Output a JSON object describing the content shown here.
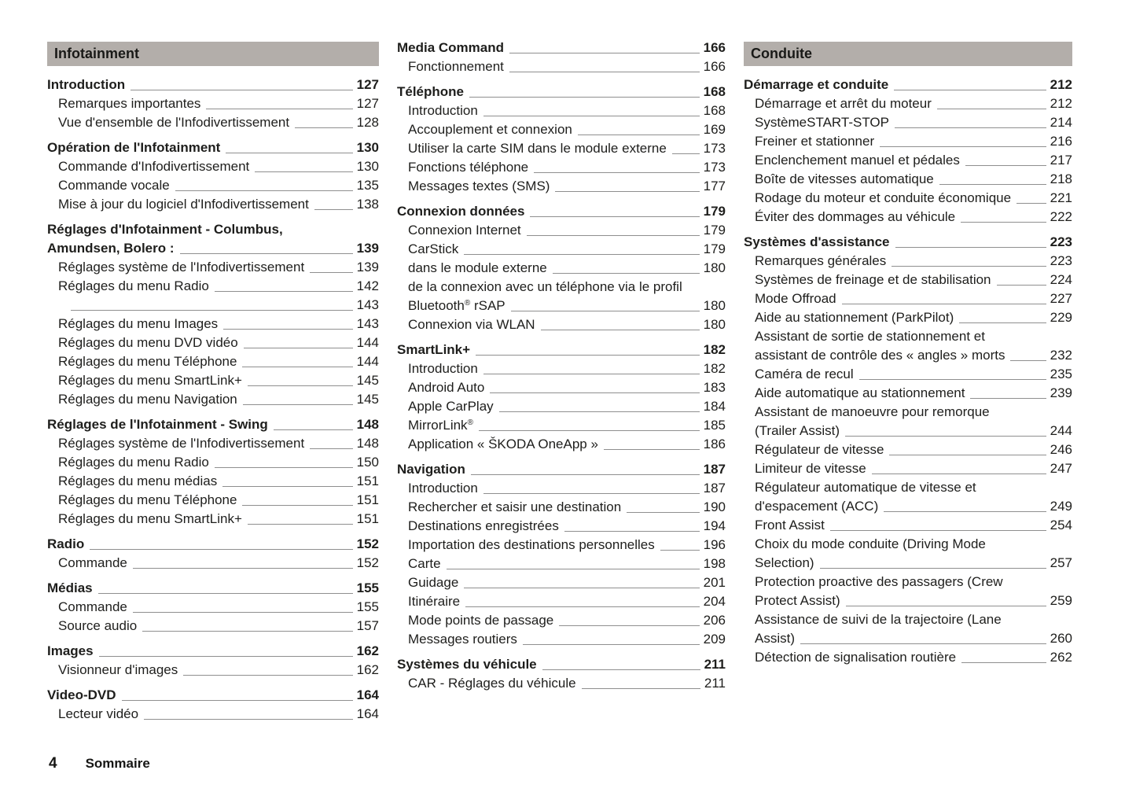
{
  "footer": {
    "page_number": "4",
    "label": "Sommaire"
  },
  "columns": [
    {
      "banner": "Infotainment",
      "sections": [
        {
          "title": "Introduction",
          "page": "127",
          "items": [
            {
              "label": "Remarques importantes",
              "page": "127"
            },
            {
              "label": "Vue d'ensemble de l'Infodivertissement",
              "page": "128"
            }
          ]
        },
        {
          "title": "Opération de l'Infotainment",
          "page": "130",
          "items": [
            {
              "label": "Commande d'Infodivertissement",
              "page": "130"
            },
            {
              "label": "Commande vocale",
              "page": "135"
            },
            {
              "label": "Mise à jour du logiciel d'Infodivertissement",
              "page": "138"
            }
          ]
        },
        {
          "title": "Réglages d'Infotainment - Columbus,\nAmundsen, Bolero :",
          "page": "139",
          "items": [
            {
              "label": "Réglages système de l'Infodivertissement",
              "page": "139"
            },
            {
              "label": "Réglages du menu Radio",
              "page": "142"
            },
            {
              "label": "",
              "page": "143"
            },
            {
              "label": "Réglages du menu Images",
              "page": "143"
            },
            {
              "label": "Réglages du menu DVD vidéo",
              "page": "144"
            },
            {
              "label": "Réglages du menu Téléphone",
              "page": "144"
            },
            {
              "label": "Réglages du menu SmartLink+",
              "page": "145"
            },
            {
              "label": "Réglages du menu Navigation",
              "page": "145"
            }
          ]
        },
        {
          "title": "Réglages de l'Infotainment - Swing",
          "page": "148",
          "items": [
            {
              "label": "Réglages système de l'Infodivertissement",
              "page": "148"
            },
            {
              "label": "Réglages du menu Radio",
              "page": "150"
            },
            {
              "label": "Réglages du menu médias",
              "page": "151"
            },
            {
              "label": "Réglages du menu Téléphone",
              "page": "151"
            },
            {
              "label": "Réglages du menu SmartLink+",
              "page": "151"
            }
          ]
        },
        {
          "title": "Radio",
          "page": "152",
          "items": [
            {
              "label": "Commande",
              "page": "152"
            }
          ]
        },
        {
          "title": "Médias",
          "page": "155",
          "items": [
            {
              "label": "Commande",
              "page": "155"
            },
            {
              "label": "Source audio",
              "page": "157"
            }
          ]
        },
        {
          "title": "Images",
          "page": "162",
          "items": [
            {
              "label": "Visionneur d'images",
              "page": "162"
            }
          ]
        },
        {
          "title": "Video-DVD",
          "page": "164",
          "items": [
            {
              "label": "Lecteur vidéo",
              "page": "164"
            }
          ]
        }
      ]
    },
    {
      "banner": null,
      "sections": [
        {
          "title": "Media Command",
          "page": "166",
          "items": [
            {
              "label": "Fonctionnement",
              "page": "166"
            }
          ]
        },
        {
          "title": "Téléphone",
          "page": "168",
          "items": [
            {
              "label": "Introduction",
              "page": "168"
            },
            {
              "label": "Accouplement et connexion",
              "page": "169"
            },
            {
              "label": "Utiliser la carte SIM dans le module externe",
              "page": "173"
            },
            {
              "label": "Fonctions téléphone",
              "page": "173"
            },
            {
              "label": "Messages textes (SMS)",
              "page": "177"
            }
          ]
        },
        {
          "title": "Connexion données",
          "page": "179",
          "items": [
            {
              "label": "Connexion Internet",
              "page": "179"
            },
            {
              "label": "CarStick",
              "page": "179"
            },
            {
              "label": "dans le module externe",
              "page": "180"
            },
            {
              "label": "de la connexion avec un téléphone via le profil\nBluetooth® rSAP",
              "page": "180"
            },
            {
              "label": "Connexion via WLAN",
              "page": "180"
            }
          ]
        },
        {
          "title": "SmartLink+",
          "page": "182",
          "items": [
            {
              "label": "Introduction",
              "page": "182"
            },
            {
              "label": "Android Auto",
              "page": "183"
            },
            {
              "label": "Apple CarPlay",
              "page": "184"
            },
            {
              "label": "MirrorLink®",
              "page": "185"
            },
            {
              "label": "Application « ŠKODA OneApp »",
              "page": "186"
            }
          ]
        },
        {
          "title": "Navigation",
          "page": "187",
          "items": [
            {
              "label": "Introduction",
              "page": "187"
            },
            {
              "label": "Rechercher et saisir une destination",
              "page": "190"
            },
            {
              "label": "Destinations enregistrées",
              "page": "194"
            },
            {
              "label": "Importation des destinations personnelles",
              "page": "196"
            },
            {
              "label": "Carte",
              "page": "198"
            },
            {
              "label": "Guidage",
              "page": "201"
            },
            {
              "label": "Itinéraire",
              "page": "204"
            },
            {
              "label": "Mode points de passage",
              "page": "206"
            },
            {
              "label": "Messages routiers",
              "page": "209"
            }
          ]
        },
        {
          "title": "Systèmes du véhicule",
          "page": "211",
          "items": [
            {
              "label": "CAR - Réglages du véhicule",
              "page": "211"
            }
          ]
        }
      ]
    },
    {
      "banner": "Conduite",
      "sections": [
        {
          "title": "Démarrage et conduite",
          "page": "212",
          "items": [
            {
              "label": "Démarrage et arrêt du moteur",
              "page": "212"
            },
            {
              "label": "SystèmeSTART-STOP",
              "page": "214"
            },
            {
              "label": "Freiner et stationner",
              "page": "216"
            },
            {
              "label": "Enclenchement manuel et pédales",
              "page": "217"
            },
            {
              "label": "Boîte de vitesses automatique",
              "page": "218"
            },
            {
              "label": "Rodage du moteur et conduite économique",
              "page": "221"
            },
            {
              "label": "Éviter des dommages au véhicule",
              "page": "222"
            }
          ]
        },
        {
          "title": "Systèmes d'assistance",
          "page": "223",
          "items": [
            {
              "label": "Remarques générales",
              "page": "223"
            },
            {
              "label": "Systèmes de freinage et de stabilisation",
              "page": "224"
            },
            {
              "label": "Mode Offroad",
              "page": "227"
            },
            {
              "label": "Aide au stationnement (ParkPilot)",
              "page": "229"
            },
            {
              "label": "Assistant de sortie de stationnement et\nassistant de contrôle des « angles » morts",
              "page": "232"
            },
            {
              "label": "Caméra de recul",
              "page": "235"
            },
            {
              "label": "Aide automatique au stationnement",
              "page": "239"
            },
            {
              "label": "Assistant de manoeuvre pour remorque\n(Trailer Assist)",
              "page": "244"
            },
            {
              "label": "Régulateur de vitesse",
              "page": "246"
            },
            {
              "label": "Limiteur de vitesse",
              "page": "247"
            },
            {
              "label": "Régulateur automatique de vitesse et\nd'espacement (ACC)",
              "page": "249"
            },
            {
              "label": "Front Assist",
              "page": "254"
            },
            {
              "label": "Choix du mode conduite (Driving Mode\nSelection)",
              "page": "257"
            },
            {
              "label": "Protection proactive des passagers (Crew\nProtect Assist)",
              "page": "259"
            },
            {
              "label": "Assistance de suivi de la trajectoire (Lane\nAssist)",
              "page": "260"
            },
            {
              "label": "Détection de signalisation routière",
              "page": "262"
            }
          ]
        }
      ]
    }
  ]
}
